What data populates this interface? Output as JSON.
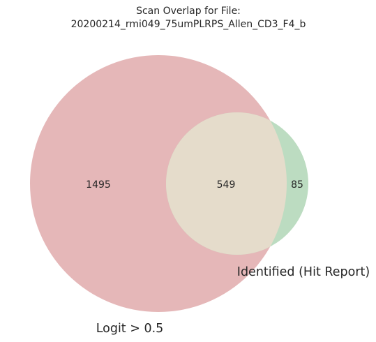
{
  "chart_data": {
    "type": "venn2",
    "title": [
      "Scan Overlap for File:",
      "20200214_rmi049_75umPLRPS_Allen_CD3_F4_b"
    ],
    "sets": [
      {
        "name": "Logit > 0.5",
        "only_count": 1495,
        "color": "#e5b7b8"
      },
      {
        "name": "Identified (Hit Report)",
        "only_count": 85,
        "color": "#bcdcc1"
      }
    ],
    "intersection": {
      "count": 549,
      "color": "#e5dccb"
    }
  }
}
